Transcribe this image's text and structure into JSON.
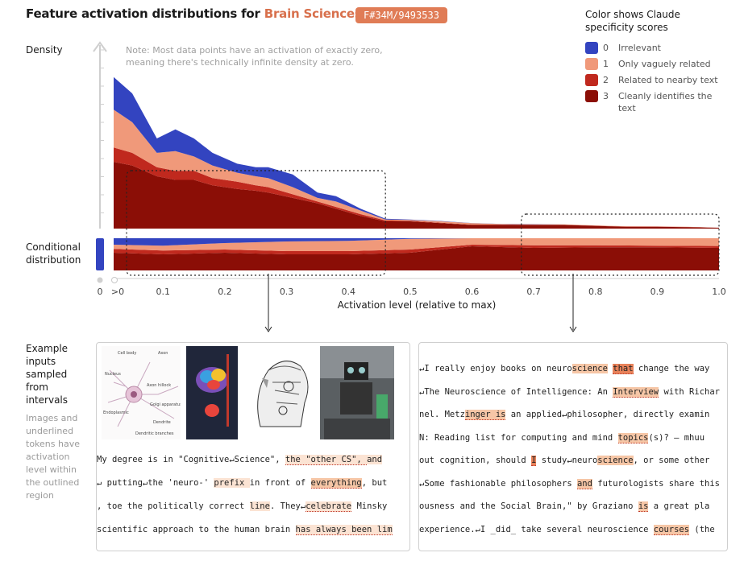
{
  "title": {
    "prefix": "Feature activation distributions for ",
    "highlight": "Brain Sciences"
  },
  "feature_id": "F#34M/9493533",
  "legend": {
    "title": "Color shows Claude specificity scores",
    "items": [
      {
        "num": "0",
        "label": "Irrelevant",
        "color": "#3344c0"
      },
      {
        "num": "1",
        "label": "Only vaguely related",
        "color": "#f0997a"
      },
      {
        "num": "2",
        "label": "Related to nearby text",
        "color": "#c0291e"
      },
      {
        "num": "3",
        "label": "Cleanly identifies the text",
        "color": "#8b0e06"
      }
    ]
  },
  "labels": {
    "density": "Density",
    "conditional": "Conditional distribution",
    "note": "Note: Most data points have an activation of exactly zero, meaning there's technically infinite density at zero.",
    "examples": "Example inputs sampled from intervals",
    "examples_note": "Images and underlined tokens have activation level within the outlined region"
  },
  "chart_data": {
    "type": "area",
    "title": "Feature activation distributions for Brain Sciences",
    "xlabel": "Activation level (relative to max)",
    "ylabel": "Density",
    "x_ticks": [
      "0",
      ">0",
      "0.1",
      "0.2",
      "0.3",
      "0.4",
      "0.5",
      "0.6",
      "0.7",
      "0.8",
      "0.9",
      "1.0"
    ],
    "xlim": [
      0,
      1.0
    ],
    "x": [
      0,
      0.02,
      0.05,
      0.09,
      0.12,
      0.15,
      0.18,
      0.22,
      0.25,
      0.27,
      0.31,
      0.35,
      0.38,
      0.42,
      0.46,
      0.5,
      0.55,
      0.6,
      0.65,
      0.7,
      0.75,
      0.8,
      0.85,
      0.9,
      0.95,
      1.0
    ],
    "series": [
      {
        "name": "3",
        "values": [
          0.44,
          0.37,
          0.35,
          0.29,
          0.27,
          0.27,
          0.24,
          0.22,
          0.21,
          0.2,
          0.17,
          0.14,
          0.11,
          0.07,
          0.04,
          0.04,
          0.03,
          0.02,
          0.02,
          0.02,
          0.02,
          0.015,
          0.01,
          0.01,
          0.008,
          0.005
        ]
      },
      {
        "name": "2",
        "values": [
          0.1,
          0.08,
          0.07,
          0.05,
          0.05,
          0.05,
          0.04,
          0.04,
          0.03,
          0.03,
          0.02,
          0.01,
          0.01,
          0.01,
          0.005,
          0.003,
          0.002,
          0.002,
          0.002,
          0.001,
          0.001,
          0.001,
          0.001,
          0.001,
          0.001,
          0.0
        ]
      },
      {
        "name": "1",
        "values": [
          0.26,
          0.21,
          0.17,
          0.08,
          0.11,
          0.08,
          0.07,
          0.05,
          0.05,
          0.05,
          0.04,
          0.02,
          0.03,
          0.02,
          0.005,
          0.005,
          0.008,
          0.008,
          0.003,
          0.003,
          0.002,
          0.002,
          0.002,
          0.001,
          0.001,
          0.0
        ]
      },
      {
        "name": "0",
        "values": [
          0.2,
          0.18,
          0.16,
          0.08,
          0.12,
          0.1,
          0.07,
          0.05,
          0.05,
          0.06,
          0.07,
          0.03,
          0.03,
          0.01,
          0.005,
          0.002,
          0.002,
          0.001,
          0.001,
          0.001,
          0.0,
          0.0,
          0.0,
          0.0,
          0.0,
          0.0
        ]
      }
    ],
    "conditional": {
      "x": [
        0.02,
        0.1,
        0.2,
        0.3,
        0.4,
        0.5,
        0.6,
        0.7,
        0.8,
        0.9,
        1.0
      ],
      "series": [
        {
          "name": "3",
          "values": [
            0.55,
            0.5,
            0.55,
            0.5,
            0.5,
            0.55,
            0.75,
            0.7,
            0.72,
            0.72,
            0.7
          ]
        },
        {
          "name": "2",
          "values": [
            0.12,
            0.12,
            0.1,
            0.1,
            0.1,
            0.1,
            0.05,
            0.08,
            0.06,
            0.05,
            0.06
          ]
        },
        {
          "name": "1",
          "values": [
            0.13,
            0.15,
            0.2,
            0.3,
            0.32,
            0.33,
            0.2,
            0.22,
            0.22,
            0.23,
            0.24
          ]
        },
        {
          "name": "0",
          "values": [
            0.2,
            0.23,
            0.15,
            0.1,
            0.08,
            0.02,
            0.0,
            0.0,
            0.0,
            0.0,
            0.0
          ]
        }
      ],
      "zero_bar_color": "#3344c0"
    },
    "outlined_regions": [
      [
        0.02,
        0.46
      ],
      [
        0.68,
        1.0
      ]
    ]
  },
  "left_examples": [
    {
      "segs": [
        [
          " My degree is in \"Cognitive↵Science\", ",
          ""
        ],
        [
          "the \"other CS\", ",
          "tok-l uline"
        ],
        [
          "and",
          "tok-l"
        ]
      ]
    },
    {
      "segs": [
        [
          "↵ putting↵the 'neuro-' ",
          ""
        ],
        [
          "prefix ",
          "tok-l"
        ],
        [
          "in front of ",
          ""
        ],
        [
          "everything",
          "tok-m uline"
        ],
        [
          ", but",
          ""
        ]
      ]
    },
    {
      "segs": [
        [
          ", toe the politically correct ",
          ""
        ],
        [
          "line",
          "tok-l"
        ],
        [
          ". They↵",
          ""
        ],
        [
          "celebrate",
          "tok-l uline"
        ],
        [
          " Minsky",
          ""
        ]
      ]
    },
    {
      "segs": [
        [
          " scientific approach to the human brain ",
          ""
        ],
        [
          "has always been lim",
          "tok-l uline"
        ]
      ]
    }
  ],
  "right_examples": [
    {
      "segs": [
        [
          "↵I really enjoy books on neuro",
          ""
        ],
        [
          "science",
          "tok-m"
        ],
        [
          " ",
          ""
        ],
        [
          "that",
          "tok-h uline"
        ],
        [
          " change the way",
          ""
        ]
      ]
    },
    {
      "segs": [
        [
          "↵The Neuroscience of Intelligence: An ",
          ""
        ],
        [
          "Interview",
          "tok-m uline"
        ],
        [
          " with Richar",
          ""
        ]
      ]
    },
    {
      "segs": [
        [
          "nel. Metz",
          ""
        ],
        [
          "inger is",
          "tok-m uline"
        ],
        [
          " an applied↵philosopher, directly examin",
          ""
        ]
      ]
    },
    {
      "segs": [
        [
          "N: Reading list for computing and mind ",
          ""
        ],
        [
          "topics",
          "tok-m uline"
        ],
        [
          "(s)? – mhuu",
          ""
        ]
      ]
    },
    {
      "segs": [
        [
          "out cognition, should ",
          ""
        ],
        [
          "I",
          "tok-h uline"
        ],
        [
          " study↵neuro",
          ""
        ],
        [
          "science",
          "tok-m"
        ],
        [
          ", or some other",
          ""
        ]
      ]
    },
    {
      "segs": [
        [
          "↵Some fashionable philosophers ",
          ""
        ],
        [
          "and",
          "tok-m uline"
        ],
        [
          " futurologists share this",
          ""
        ]
      ]
    },
    {
      "segs": [
        [
          "ousness and the Social Brain,\" by Graziano ",
          ""
        ],
        [
          "is",
          "tok-m uline"
        ],
        [
          " a great pla",
          ""
        ]
      ]
    },
    {
      "segs": [
        [
          "experience.↵I _did_ take several neuroscience ",
          ""
        ],
        [
          "courses",
          "tok-m uline"
        ],
        [
          " (the",
          ""
        ]
      ]
    }
  ]
}
